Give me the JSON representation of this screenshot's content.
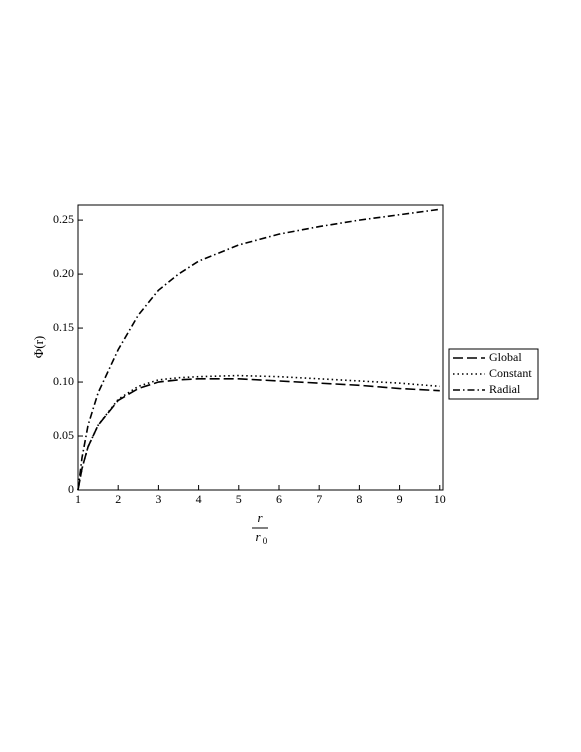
{
  "chart_data": {
    "type": "line",
    "ylabel": "Φ(r)",
    "xlabel": {
      "numerator": "r",
      "denominator": "r",
      "denominator_subscript": "0"
    },
    "x": [
      1,
      1.1,
      1.25,
      1.5,
      2,
      2.5,
      3,
      3.5,
      4,
      5,
      6,
      7,
      8,
      9,
      10
    ],
    "series": [
      {
        "name": "Global",
        "color": "#000000",
        "dash": "long",
        "values": [
          0,
          0.02,
          0.04,
          0.06,
          0.083,
          0.094,
          0.1,
          0.102,
          0.103,
          0.103,
          0.101,
          0.099,
          0.097,
          0.094,
          0.092
        ]
      },
      {
        "name": "Constant",
        "color": "#000000",
        "dash": "dot",
        "values": [
          0,
          0.02,
          0.04,
          0.06,
          0.084,
          0.096,
          0.102,
          0.104,
          0.105,
          0.106,
          0.105,
          0.103,
          0.101,
          0.099,
          0.096
        ]
      },
      {
        "name": "Radial",
        "color": "#000000",
        "dash": "dashdot",
        "values": [
          0,
          0.03,
          0.06,
          0.09,
          0.13,
          0.162,
          0.185,
          0.2,
          0.212,
          0.227,
          0.237,
          0.244,
          0.25,
          0.255,
          0.26
        ]
      }
    ],
    "xlim": [
      1,
      10.08
    ],
    "xticks": [
      1,
      2,
      3,
      4,
      5,
      6,
      7,
      8,
      9,
      10
    ],
    "ylim": [
      0,
      0.264
    ],
    "yticks": [
      0,
      0.05,
      {
        "value": 0.1,
        "label": "0.10"
      },
      0.15,
      {
        "value": 0.2,
        "label": "0.20"
      },
      0.25
    ],
    "legend": "right"
  }
}
